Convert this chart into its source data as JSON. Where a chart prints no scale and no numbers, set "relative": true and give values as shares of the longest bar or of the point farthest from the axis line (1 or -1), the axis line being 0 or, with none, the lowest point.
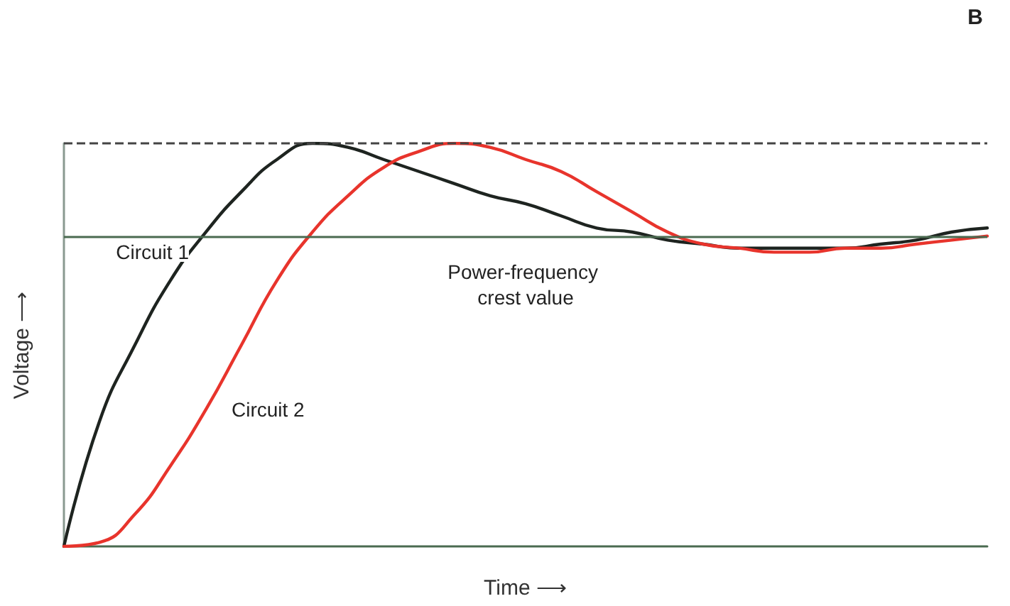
{
  "chart_data": {
    "type": "line",
    "title": "B",
    "xlabel": "Time ⟶",
    "ylabel": "Voltage ⟶",
    "relative": true,
    "legend": false,
    "marker": "none",
    "grid": false,
    "categories": [
      null,
      null,
      null,
      null,
      null,
      null,
      null,
      null,
      null,
      null,
      null,
      null,
      null,
      null,
      null,
      null,
      null,
      null,
      null,
      null,
      null,
      null,
      null,
      null,
      null,
      null,
      null
    ],
    "series": [
      {
        "name": "Circuit 1",
        "color": "#1e2420",
        "values": [
          0,
          0.31,
          0.5,
          0.66,
          0.78,
          0.88,
          0.96,
          1.0,
          0.99,
          0.96,
          0.93,
          0.9,
          0.87,
          0.85,
          0.82,
          0.79,
          0.78,
          0.76,
          0.75,
          0.74,
          0.74,
          0.74,
          0.74,
          0.75,
          0.76,
          0.78,
          0.79
        ]
      },
      {
        "name": "Circuit 2",
        "color": "#e8342c",
        "values": [
          0,
          0.01,
          0.08,
          0.2,
          0.34,
          0.5,
          0.66,
          0.78,
          0.87,
          0.94,
          0.98,
          1.0,
          0.99,
          0.96,
          0.93,
          0.88,
          0.83,
          0.78,
          0.75,
          0.74,
          0.73,
          0.73,
          0.74,
          0.74,
          0.75,
          0.76,
          0.77
        ]
      }
    ],
    "ref_lines": [
      {
        "axis": "y",
        "value": 1.0,
        "label": null,
        "line_style": "dashed",
        "color": "#444444"
      },
      {
        "axis": "y",
        "value": 0.77,
        "label": "Power-frequency crest value",
        "line_style": "solid",
        "color": "#4a6a50"
      }
    ]
  }
}
